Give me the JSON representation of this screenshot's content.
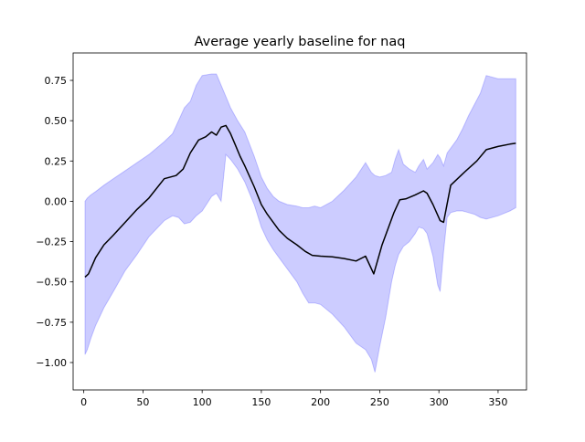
{
  "chart_data": {
    "type": "area",
    "title": "Average yearly baseline for naq",
    "xlabel": "",
    "ylabel": "",
    "xlim": [
      -9,
      374
    ],
    "ylim": [
      -1.17,
      0.92
    ],
    "xticks": [
      0,
      50,
      100,
      150,
      200,
      250,
      300,
      350
    ],
    "yticks": [
      -1.0,
      -0.75,
      -0.5,
      -0.25,
      0.0,
      0.25,
      0.5,
      0.75
    ],
    "xtick_labels": [
      "0",
      "50",
      "100",
      "150",
      "200",
      "250",
      "300",
      "350"
    ],
    "ytick_labels": [
      "−1.00",
      "−0.75",
      "−0.50",
      "−0.25",
      "0.00",
      "0.25",
      "0.50",
      "0.75"
    ],
    "grid": false,
    "series": [
      {
        "kind": "line",
        "color": "#000000",
        "x": [
          1,
          4,
          10,
          17,
          25,
          35,
          45,
          55,
          68,
          78,
          84,
          90,
          97,
          103,
          108,
          112,
          116,
          120,
          124,
          128,
          132,
          136,
          144,
          150,
          155,
          160,
          165,
          172,
          180,
          187,
          193,
          200,
          210,
          220,
          230,
          238,
          245,
          252,
          262,
          267,
          272,
          280,
          287,
          290,
          295,
          301,
          304,
          310,
          320,
          332,
          340,
          350,
          360,
          365
        ],
        "y": [
          -0.47,
          -0.45,
          -0.35,
          -0.27,
          -0.21,
          -0.13,
          -0.05,
          0.02,
          0.14,
          0.16,
          0.2,
          0.3,
          0.38,
          0.4,
          0.43,
          0.41,
          0.46,
          0.47,
          0.42,
          0.35,
          0.28,
          0.22,
          0.09,
          -0.02,
          -0.08,
          -0.13,
          -0.18,
          -0.23,
          -0.27,
          -0.31,
          -0.335,
          -0.34,
          -0.345,
          -0.355,
          -0.37,
          -0.34,
          -0.45,
          -0.27,
          -0.07,
          0.01,
          0.015,
          0.04,
          0.065,
          0.05,
          -0.02,
          -0.12,
          -0.13,
          0.1,
          0.17,
          0.25,
          0.32,
          0.34,
          0.355,
          0.36
        ]
      },
      {
        "kind": "band",
        "color": "#0000ff",
        "opacity": 0.2,
        "x": [
          1,
          3,
          6,
          10,
          17,
          25,
          35,
          45,
          55,
          68,
          75,
          80,
          85,
          90,
          95,
          100,
          108,
          112,
          116,
          120,
          124,
          130,
          136,
          144,
          150,
          155,
          160,
          165,
          172,
          180,
          185,
          190,
          195,
          200,
          210,
          220,
          230,
          238,
          243,
          246,
          250,
          255,
          260,
          263,
          266,
          270,
          275,
          280,
          283,
          287,
          290,
          295,
          299,
          301,
          304,
          307,
          310,
          315,
          320,
          325,
          330,
          335,
          340,
          350,
          360,
          365
        ],
        "upper": [
          0.0,
          0.02,
          0.04,
          0.06,
          0.1,
          0.14,
          0.19,
          0.24,
          0.29,
          0.37,
          0.42,
          0.5,
          0.58,
          0.62,
          0.72,
          0.78,
          0.79,
          0.79,
          0.72,
          0.65,
          0.58,
          0.5,
          0.43,
          0.28,
          0.15,
          0.08,
          0.03,
          0.0,
          -0.02,
          -0.03,
          -0.04,
          -0.04,
          -0.03,
          -0.04,
          0.0,
          0.07,
          0.15,
          0.24,
          0.18,
          0.16,
          0.15,
          0.16,
          0.18,
          0.26,
          0.32,
          0.23,
          0.2,
          0.18,
          0.22,
          0.26,
          0.2,
          0.24,
          0.29,
          0.27,
          0.22,
          0.3,
          0.33,
          0.38,
          0.45,
          0.53,
          0.6,
          0.67,
          0.78,
          0.76,
          0.76,
          0.76
        ],
        "lower": [
          -0.95,
          -0.92,
          -0.85,
          -0.77,
          -0.66,
          -0.56,
          -0.43,
          -0.33,
          -0.22,
          -0.12,
          -0.09,
          -0.1,
          -0.14,
          -0.13,
          -0.09,
          -0.06,
          0.03,
          0.05,
          0.0,
          0.29,
          0.26,
          0.2,
          0.12,
          -0.02,
          -0.16,
          -0.24,
          -0.3,
          -0.35,
          -0.42,
          -0.5,
          -0.57,
          -0.63,
          -0.63,
          -0.64,
          -0.7,
          -0.78,
          -0.88,
          -0.92,
          -0.98,
          -1.06,
          -0.9,
          -0.72,
          -0.5,
          -0.4,
          -0.33,
          -0.28,
          -0.25,
          -0.2,
          -0.16,
          -0.17,
          -0.2,
          -0.34,
          -0.52,
          -0.56,
          -0.31,
          -0.1,
          -0.07,
          -0.06,
          -0.06,
          -0.07,
          -0.08,
          -0.1,
          -0.11,
          -0.09,
          -0.06,
          -0.04
        ]
      }
    ]
  }
}
